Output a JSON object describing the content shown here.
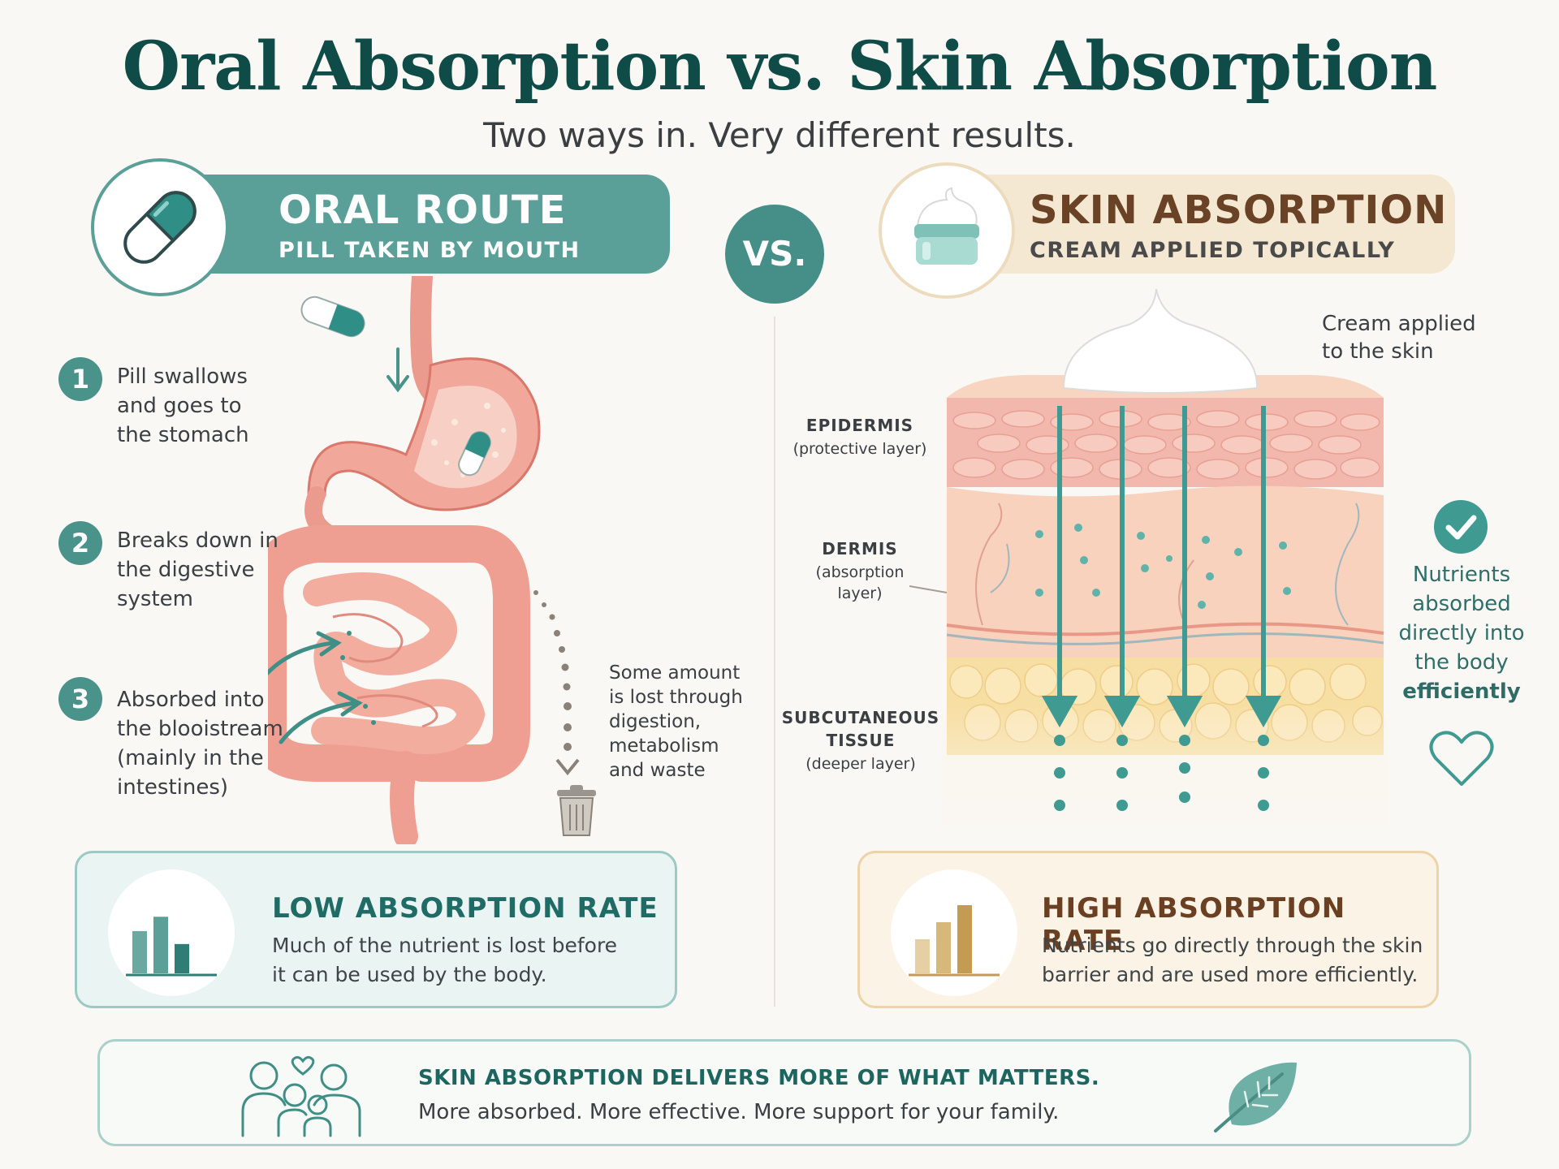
{
  "title": "Oral Absorption vs. Skin Absorption",
  "subtitle": "Two ways in. Very different results.",
  "vs_label": "VS.",
  "oral": {
    "title": "ORAL ROUTE",
    "subtitle": "PILL TAKEN BY MOUTH",
    "icon": "capsule-icon",
    "steps": [
      {
        "num": "1",
        "lines": [
          "Pill swallows",
          "and goes to",
          "the stomach"
        ]
      },
      {
        "num": "2",
        "lines": [
          "Breaks down in",
          "the digestive",
          "system"
        ]
      },
      {
        "num": "3",
        "lines": [
          "Absorbed into",
          "the blooistream",
          "(mainly in the",
          "intestines)"
        ]
      }
    ],
    "loss_note": [
      "Some amount",
      "is lost through",
      "digestion,",
      "metabolism",
      "and waste"
    ],
    "rate": {
      "title": "LOW ABSORPTION RATE",
      "desc_lines": [
        "Much of the nutrient is lost before",
        "it can be used by the body."
      ],
      "bars": [
        0.62,
        0.83,
        0.43
      ]
    }
  },
  "skin": {
    "title": "SKIN ABSORPTION",
    "subtitle": "CREAM APPLIED TOPICALLY",
    "icon": "cream-jar-icon",
    "cream_note": [
      "Cream applied",
      "to the skin"
    ],
    "layers": [
      {
        "title": "EPIDERMIS",
        "sub": [
          "(protective layer)"
        ]
      },
      {
        "title": "DERMIS",
        "sub": [
          "(absorption",
          "layer)"
        ]
      },
      {
        "title_lines": [
          "SUBCUTANEOUS",
          "TISSUE"
        ],
        "sub": [
          "(deeper layer)"
        ]
      }
    ],
    "result_note": {
      "lines": [
        "Nutrients",
        "absorbed",
        "directly into",
        "the body"
      ],
      "emphasis": "efficiently"
    },
    "rate": {
      "title": "HIGH ABSORPTION RATE",
      "desc_lines": [
        "Nutrients go directly through the skin",
        "barrier and are used more efficiently."
      ],
      "bars": [
        0.5,
        0.75,
        1.0
      ]
    }
  },
  "footer": {
    "title": "SKIN ABSORPTION DELIVERS MORE OF WHAT MATTERS.",
    "text": "More absorbed. More effective. More support for your family.",
    "icons": [
      "family-icon",
      "leaf-icon"
    ]
  },
  "colors": {
    "teal": "#4a938b",
    "dark_teal": "#0f4c48",
    "sand": "#f4e8d2",
    "brown": "#6a4326",
    "gold": "#c9a35e"
  }
}
